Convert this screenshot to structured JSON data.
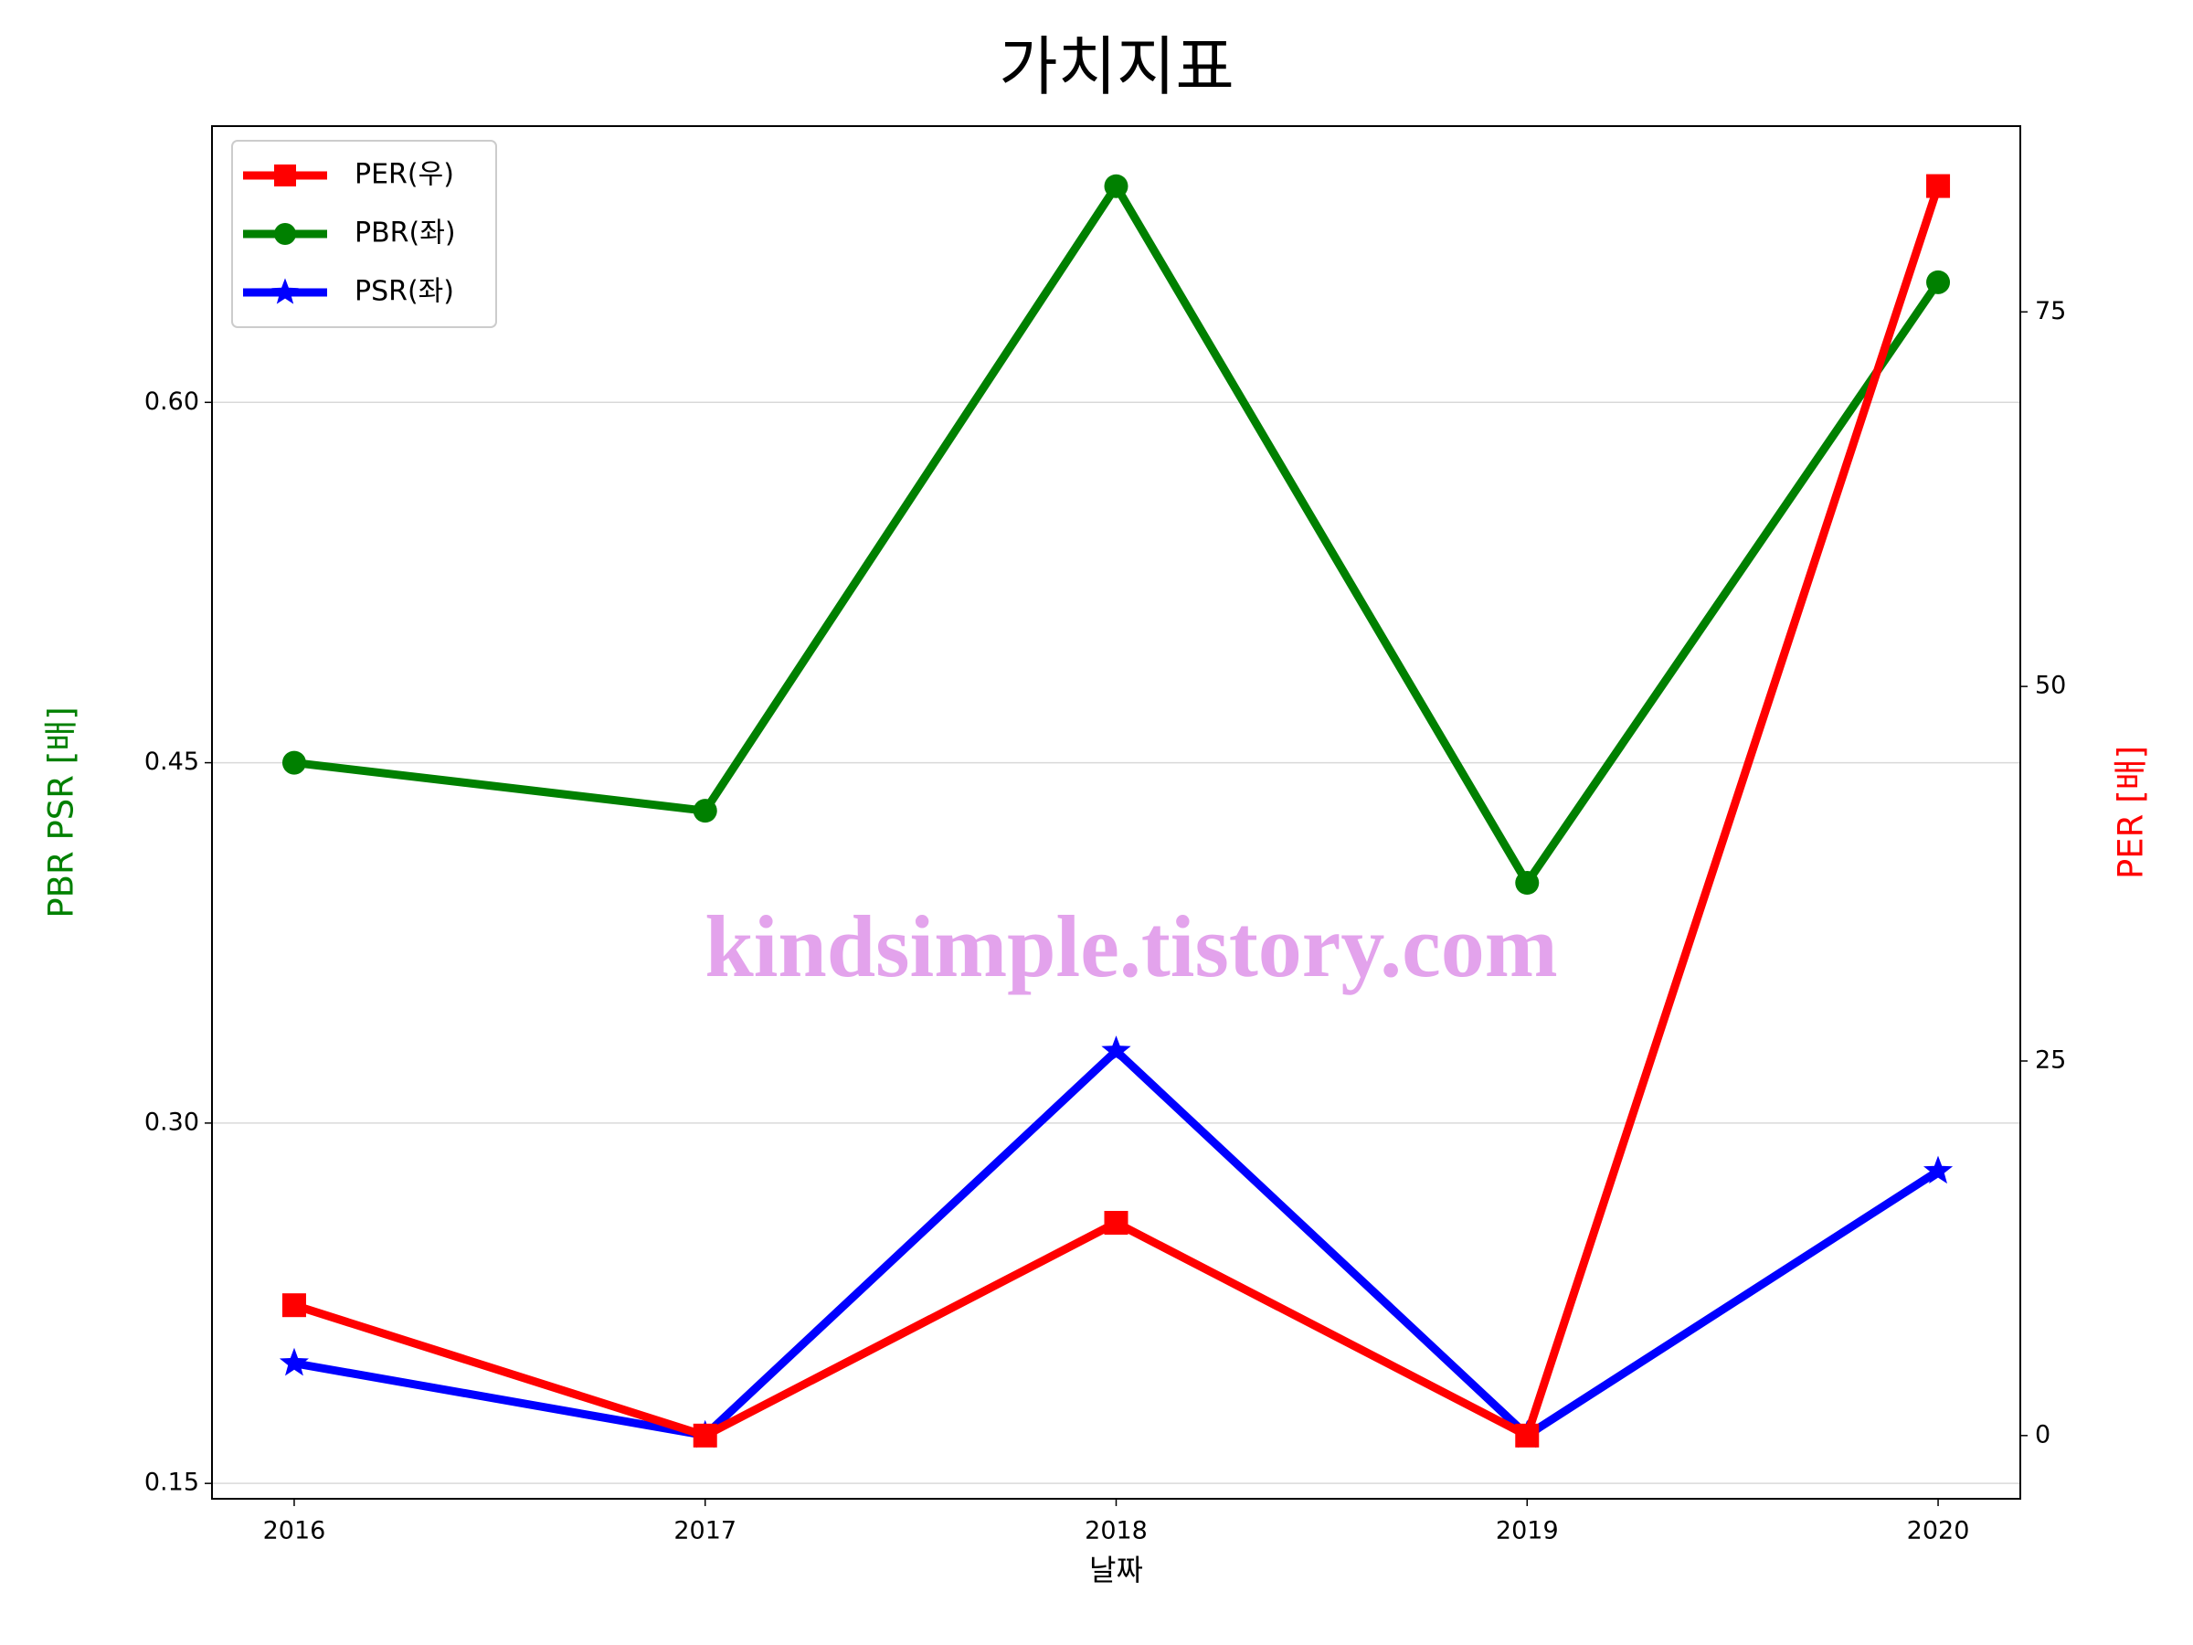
{
  "chart_data": {
    "type": "line",
    "title": "가치지표",
    "xlabel": "날짜",
    "ylabel": "PBR PSR [배]",
    "y2label": "PER [배]",
    "ylabel_color": "#008000",
    "y2label_color": "#ff0000",
    "annotation": "kindsimple.tistory.com",
    "x": [
      2016,
      2017,
      2018,
      2019,
      2020
    ],
    "xlim": [
      2015.8,
      2020.2
    ],
    "xticks": [
      2016,
      2017,
      2018,
      2019,
      2020
    ],
    "ylim": [
      0.1436,
      0.715
    ],
    "yticks": [
      {
        "value": 0.15,
        "label": "0.15"
      },
      {
        "value": 0.3,
        "label": "0.30"
      },
      {
        "value": 0.45,
        "label": "0.45"
      },
      {
        "value": 0.6,
        "label": "0.60"
      }
    ],
    "y2lim": [
      -4.22,
      87.4
    ],
    "y2ticks": [
      0,
      25,
      50,
      75
    ],
    "grid": true,
    "legend": "upper left",
    "series": [
      {
        "name": "PER(우)",
        "color": "#ff0000",
        "marker": "square",
        "axis": "y2",
        "values": [
          8.7,
          0,
          14.2,
          0,
          83.4
        ]
      },
      {
        "name": "PBR(좌)",
        "color": "#008000",
        "marker": "circle",
        "axis": "y",
        "values": [
          0.45,
          0.43,
          0.69,
          0.4,
          0.65
        ]
      },
      {
        "name": "PSR(좌)",
        "color": "#0000ff",
        "marker": "star",
        "axis": "y",
        "values": [
          0.2,
          0.17,
          0.33,
          0.17,
          0.28
        ]
      }
    ]
  }
}
